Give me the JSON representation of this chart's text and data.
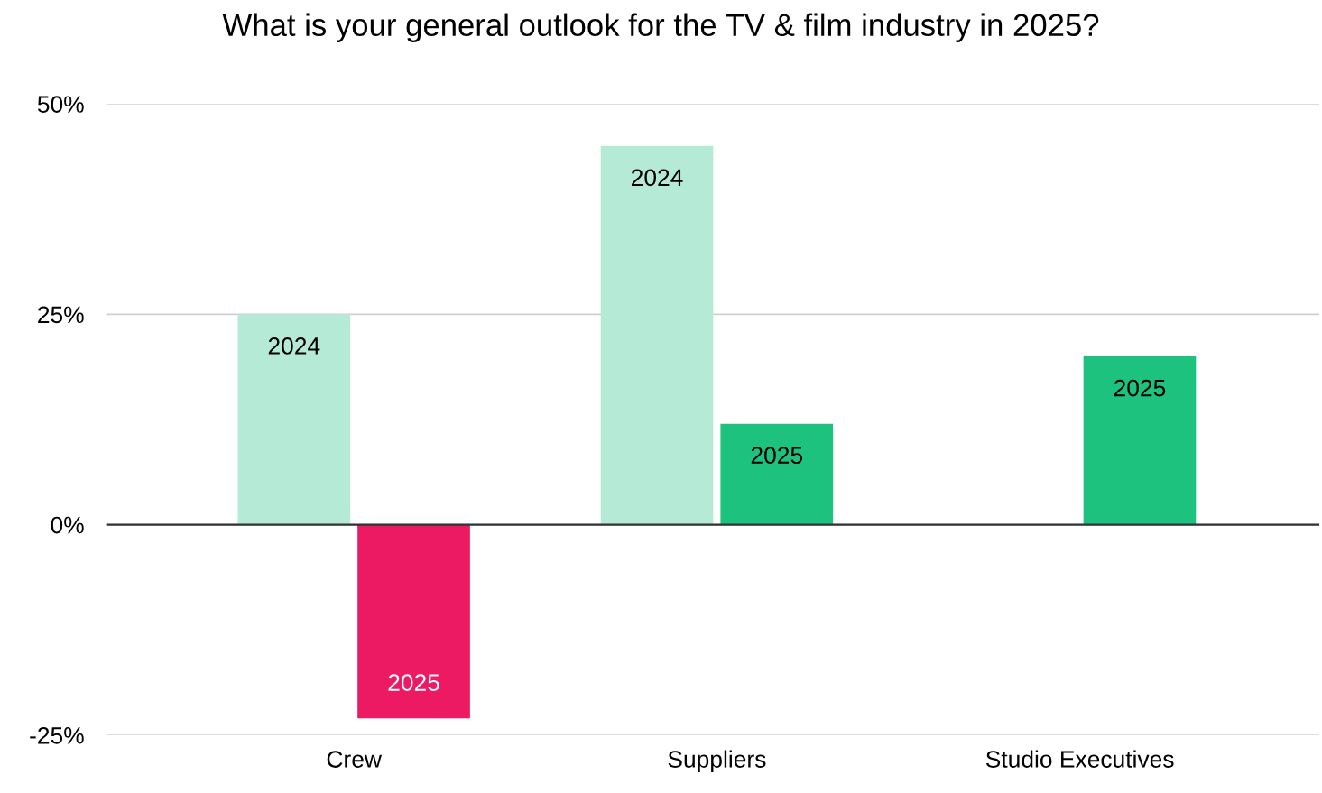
{
  "chart_data": {
    "type": "bar",
    "title": "What is your general outlook for the TV & film industry in 2025?",
    "categories": [
      "Crew",
      "Suppliers",
      "Studio Executives"
    ],
    "series": [
      {
        "name": "2024",
        "color": "#b5ebd6",
        "values": [
          25,
          45,
          null
        ]
      },
      {
        "name": "2025",
        "colors": [
          "#ec1a62",
          "#1dc27f",
          "#1dc27f"
        ],
        "values": [
          -23,
          12,
          20
        ]
      }
    ],
    "ylim": [
      -25,
      50
    ],
    "yticks": [
      {
        "value": -25,
        "label": "-25%"
      },
      {
        "value": 0,
        "label": "0%"
      },
      {
        "value": 25,
        "label": "25%"
      },
      {
        "value": 50,
        "label": "50%"
      }
    ],
    "grid": "y",
    "legend": false
  }
}
